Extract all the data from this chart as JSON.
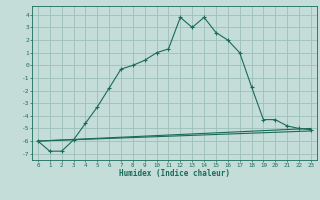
{
  "xlabel": "Humidex (Indice chaleur)",
  "bg_color": "#c5ddd8",
  "grid_color": "#9dc0b8",
  "line_color": "#1a6b5a",
  "xlim": [
    -0.5,
    23.5
  ],
  "ylim": [
    -7.5,
    4.7
  ],
  "xticks": [
    0,
    1,
    2,
    3,
    4,
    5,
    6,
    7,
    8,
    9,
    10,
    11,
    12,
    13,
    14,
    15,
    16,
    17,
    18,
    19,
    20,
    21,
    22,
    23
  ],
  "yticks": [
    -7,
    -6,
    -5,
    -4,
    -3,
    -2,
    -1,
    0,
    1,
    2,
    3,
    4
  ],
  "line1_x": [
    0,
    1,
    2,
    3,
    4,
    5,
    6,
    7,
    8,
    9,
    10,
    11,
    12,
    13,
    14,
    15,
    16,
    17,
    18,
    19,
    20,
    21,
    22,
    23
  ],
  "line1_y": [
    -6.0,
    -6.8,
    -6.8,
    -5.9,
    -4.6,
    -3.3,
    -1.8,
    -0.3,
    0.0,
    0.4,
    1.0,
    1.3,
    3.8,
    3.0,
    3.8,
    2.6,
    2.0,
    1.0,
    -1.7,
    -4.3,
    -4.3,
    -4.8,
    -5.0,
    -5.1
  ],
  "line2_x": [
    0,
    23
  ],
  "line2_y": [
    -6.0,
    -5.0
  ],
  "line3_x": [
    0,
    23
  ],
  "line3_y": [
    -6.0,
    -5.2
  ]
}
